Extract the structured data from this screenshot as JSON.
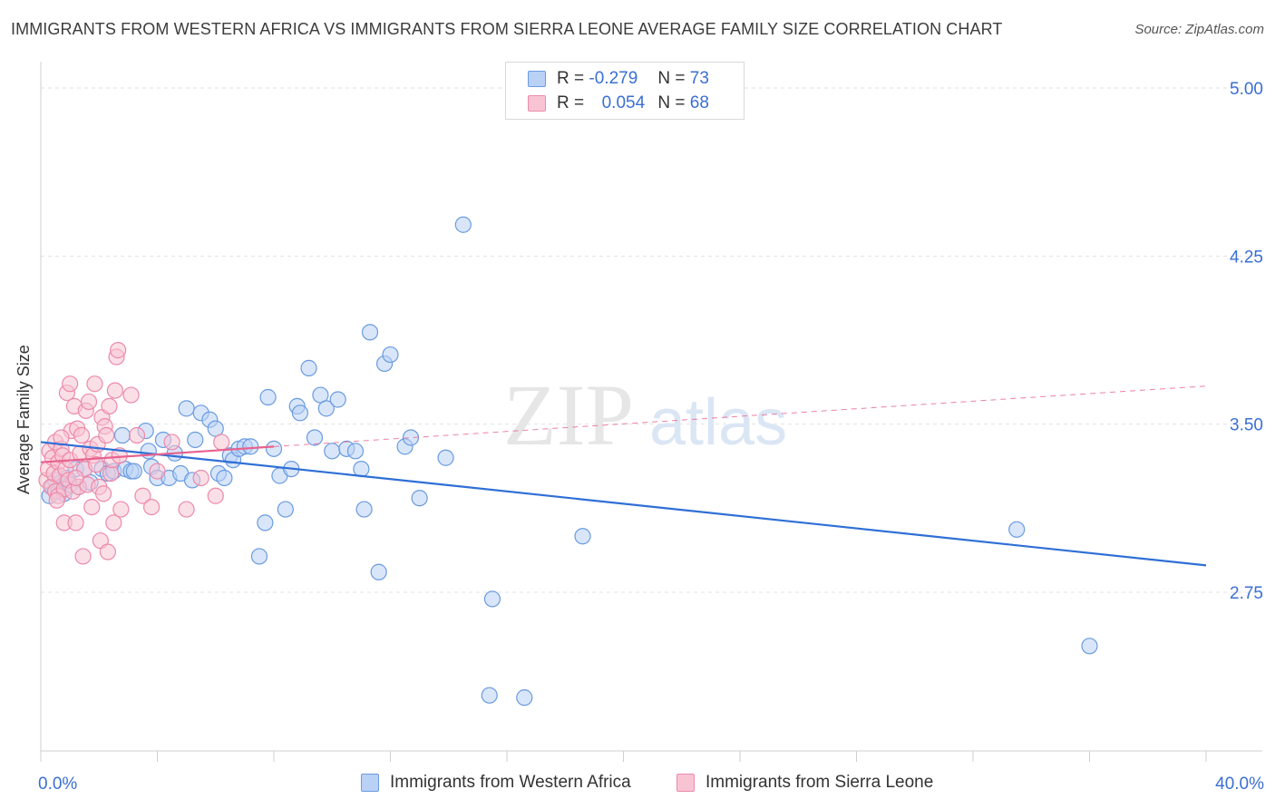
{
  "title": "IMMIGRANTS FROM WESTERN AFRICA VS IMMIGRANTS FROM SIERRA LEONE AVERAGE FAMILY SIZE CORRELATION CHART",
  "source": "Source: ZipAtlas.com",
  "watermark": {
    "zip": "ZIP",
    "atlas": "atlas"
  },
  "legend": {
    "rows": [
      {
        "r_label": "R =",
        "r_value": "-0.279",
        "n_label": "N =",
        "n_value": "73"
      },
      {
        "r_label": "R =",
        "r_value": "0.054",
        "n_label": "N =",
        "n_value": "68"
      }
    ]
  },
  "colors": {
    "blue_fill": "#b9d1f5",
    "blue_stroke": "#6a9be0",
    "blue_line": "#2f6fd6",
    "pink_fill": "#f8c4d4",
    "pink_stroke": "#ec8aaa",
    "pink_line": "#e8628e",
    "tick_label": "#3b6fd4",
    "grid": "#e2e2e2"
  },
  "chart_data": {
    "type": "scatter",
    "xlabel": "",
    "ylabel": "Average Family Size",
    "xlim": [
      0,
      40
    ],
    "ylim": [
      2.15,
      5.1
    ],
    "x_tick_labels": [
      "0.0%",
      "40.0%"
    ],
    "y_ticks": [
      2.75,
      3.5,
      4.25,
      5.0
    ],
    "y_tick_labels": [
      "2.75",
      "3.50",
      "4.25",
      "5.00"
    ],
    "grid": "horizontal dashed",
    "legend_position": "top-center",
    "series": [
      {
        "name": "Immigrants from Western Africa",
        "color": "#6a9be0",
        "trend": {
          "x": [
            0,
            40
          ],
          "y": [
            3.42,
            2.87
          ]
        },
        "points": [
          [
            0.3,
            3.18
          ],
          [
            0.4,
            3.22
          ],
          [
            0.5,
            3.25
          ],
          [
            0.6,
            3.2
          ],
          [
            0.7,
            3.24
          ],
          [
            0.8,
            3.19
          ],
          [
            0.9,
            3.26
          ],
          [
            1.0,
            3.23
          ],
          [
            1.2,
            3.3
          ],
          [
            1.3,
            3.22
          ],
          [
            1.5,
            3.3
          ],
          [
            1.7,
            3.24
          ],
          [
            2.1,
            3.3
          ],
          [
            2.3,
            3.28
          ],
          [
            2.5,
            3.29
          ],
          [
            2.8,
            3.45
          ],
          [
            2.9,
            3.3
          ],
          [
            3.1,
            3.29
          ],
          [
            3.2,
            3.29
          ],
          [
            3.6,
            3.47
          ],
          [
            3.7,
            3.38
          ],
          [
            3.8,
            3.31
          ],
          [
            4.0,
            3.26
          ],
          [
            4.2,
            3.43
          ],
          [
            4.4,
            3.26
          ],
          [
            4.6,
            3.37
          ],
          [
            4.8,
            3.28
          ],
          [
            5.0,
            3.57
          ],
          [
            5.2,
            3.25
          ],
          [
            5.3,
            3.43
          ],
          [
            5.5,
            3.55
          ],
          [
            5.8,
            3.52
          ],
          [
            6.0,
            3.48
          ],
          [
            6.1,
            3.28
          ],
          [
            6.3,
            3.26
          ],
          [
            6.5,
            3.36
          ],
          [
            6.6,
            3.34
          ],
          [
            6.8,
            3.39
          ],
          [
            7.0,
            3.4
          ],
          [
            7.2,
            3.4
          ],
          [
            7.5,
            2.91
          ],
          [
            7.7,
            3.06
          ],
          [
            7.8,
            3.62
          ],
          [
            8.0,
            3.39
          ],
          [
            8.2,
            3.27
          ],
          [
            8.4,
            3.12
          ],
          [
            8.6,
            3.3
          ],
          [
            8.8,
            3.58
          ],
          [
            8.9,
            3.55
          ],
          [
            9.2,
            3.75
          ],
          [
            9.4,
            3.44
          ],
          [
            9.6,
            3.63
          ],
          [
            9.8,
            3.57
          ],
          [
            10.0,
            3.38
          ],
          [
            10.2,
            3.61
          ],
          [
            10.5,
            3.39
          ],
          [
            10.8,
            3.38
          ],
          [
            11.0,
            3.3
          ],
          [
            11.1,
            3.12
          ],
          [
            11.3,
            3.91
          ],
          [
            11.6,
            2.84
          ],
          [
            11.8,
            3.77
          ],
          [
            12.0,
            3.81
          ],
          [
            12.5,
            3.4
          ],
          [
            12.7,
            3.44
          ],
          [
            13.0,
            3.17
          ],
          [
            13.9,
            3.35
          ],
          [
            14.5,
            4.39
          ],
          [
            15.5,
            2.72
          ],
          [
            15.4,
            2.29
          ],
          [
            16.6,
            2.28
          ],
          [
            18.6,
            3.0
          ],
          [
            33.5,
            3.03
          ],
          [
            36.0,
            2.51
          ]
        ]
      },
      {
        "name": "Immigrants from Sierra Leone",
        "color": "#ec8aaa",
        "trend": {
          "x": [
            0,
            8
          ],
          "y": [
            3.33,
            3.4
          ],
          "dashed_x": [
            8,
            40
          ],
          "dashed_y": [
            3.4,
            3.67
          ]
        },
        "points": [
          [
            0.2,
            3.25
          ],
          [
            0.25,
            3.3
          ],
          [
            0.3,
            3.38
          ],
          [
            0.35,
            3.22
          ],
          [
            0.4,
            3.35
          ],
          [
            0.45,
            3.28
          ],
          [
            0.5,
            3.2
          ],
          [
            0.5,
            3.42
          ],
          [
            0.6,
            3.33
          ],
          [
            0.6,
            3.18
          ],
          [
            0.65,
            3.27
          ],
          [
            0.7,
            3.39
          ],
          [
            0.75,
            3.36
          ],
          [
            0.8,
            3.21
          ],
          [
            0.8,
            3.06
          ],
          [
            0.85,
            3.3
          ],
          [
            0.9,
            3.64
          ],
          [
            0.95,
            3.25
          ],
          [
            1.0,
            3.68
          ],
          [
            1.0,
            3.34
          ],
          [
            1.05,
            3.47
          ],
          [
            1.1,
            3.2
          ],
          [
            1.15,
            3.58
          ],
          [
            1.2,
            3.06
          ],
          [
            1.25,
            3.48
          ],
          [
            1.3,
            3.22
          ],
          [
            1.35,
            3.37
          ],
          [
            1.4,
            3.45
          ],
          [
            1.45,
            2.91
          ],
          [
            1.5,
            3.3
          ],
          [
            1.55,
            3.56
          ],
          [
            1.6,
            3.23
          ],
          [
            1.65,
            3.6
          ],
          [
            1.7,
            3.39
          ],
          [
            1.75,
            3.13
          ],
          [
            1.8,
            3.36
          ],
          [
            1.85,
            3.68
          ],
          [
            1.9,
            3.32
          ],
          [
            1.95,
            3.41
          ],
          [
            2.0,
            3.22
          ],
          [
            2.05,
            2.98
          ],
          [
            2.1,
            3.53
          ],
          [
            2.15,
            3.19
          ],
          [
            2.2,
            3.49
          ],
          [
            2.25,
            3.45
          ],
          [
            2.3,
            2.93
          ],
          [
            2.35,
            3.58
          ],
          [
            2.4,
            3.28
          ],
          [
            2.45,
            3.34
          ],
          [
            2.5,
            3.06
          ],
          [
            2.55,
            3.65
          ],
          [
            2.6,
            3.8
          ],
          [
            2.65,
            3.83
          ],
          [
            2.7,
            3.36
          ],
          [
            2.75,
            3.12
          ],
          [
            3.1,
            3.63
          ],
          [
            3.3,
            3.45
          ],
          [
            3.5,
            3.18
          ],
          [
            3.8,
            3.13
          ],
          [
            4.0,
            3.29
          ],
          [
            4.5,
            3.42
          ],
          [
            5.0,
            3.12
          ],
          [
            5.5,
            3.26
          ],
          [
            6.0,
            3.18
          ],
          [
            6.2,
            3.42
          ],
          [
            1.2,
            3.26
          ],
          [
            0.55,
            3.16
          ],
          [
            0.7,
            3.44
          ]
        ]
      }
    ]
  },
  "bottom_legend": [
    {
      "label": "Immigrants from Western Africa"
    },
    {
      "label": "Immigrants from Sierra Leone"
    }
  ]
}
